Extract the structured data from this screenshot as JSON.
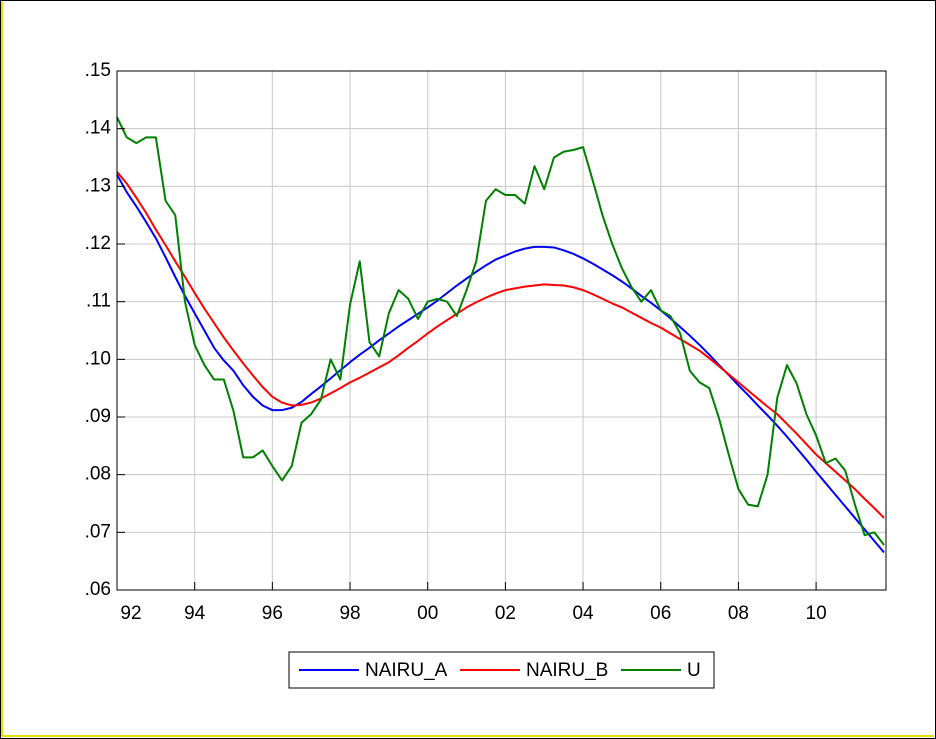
{
  "chart_data": {
    "type": "line",
    "x": [
      1992,
      1992.25,
      1992.5,
      1992.75,
      1993,
      1993.25,
      1993.5,
      1993.75,
      1994,
      1994.25,
      1994.5,
      1994.75,
      1995,
      1995.25,
      1995.5,
      1995.75,
      1996,
      1996.25,
      1996.5,
      1996.75,
      1997,
      1997.25,
      1997.5,
      1997.75,
      1998,
      1998.25,
      1998.5,
      1998.75,
      1999,
      1999.25,
      1999.5,
      1999.75,
      2000,
      2000.25,
      2000.5,
      2000.75,
      2001,
      2001.25,
      2001.5,
      2001.75,
      2002,
      2002.25,
      2002.5,
      2002.75,
      2003,
      2003.25,
      2003.5,
      2003.75,
      2004,
      2004.25,
      2004.5,
      2004.75,
      2005,
      2005.25,
      2005.5,
      2005.75,
      2006,
      2006.25,
      2006.5,
      2006.75,
      2007,
      2007.25,
      2007.5,
      2007.75,
      2008,
      2008.25,
      2008.5,
      2008.75,
      2009,
      2009.25,
      2009.5,
      2009.75,
      2010,
      2010.25,
      2010.5,
      2010.75,
      2011,
      2011.25,
      2011.5,
      2011.75
    ],
    "series": [
      {
        "name": "NAIRU_A",
        "color": "#0000ff",
        "values": [
          0.132,
          0.129,
          0.1265,
          0.1238,
          0.121,
          0.1177,
          0.1143,
          0.111,
          0.108,
          0.105,
          0.102,
          0.0998,
          0.098,
          0.0955,
          0.0935,
          0.092,
          0.0912,
          0.0912,
          0.0916,
          0.0926,
          0.094,
          0.0953,
          0.0967,
          0.0981,
          0.0995,
          0.1008,
          0.102,
          0.1033,
          0.1045,
          0.1057,
          0.1068,
          0.1079,
          0.109,
          0.1102,
          0.1115,
          0.1128,
          0.114,
          0.1152,
          0.1163,
          0.1173,
          0.118,
          0.1187,
          0.1192,
          0.1195,
          0.1195,
          0.1194,
          0.1189,
          0.1183,
          0.1175,
          0.1166,
          0.1156,
          0.1146,
          0.1135,
          0.1123,
          0.111,
          0.1098,
          0.1085,
          0.1071,
          0.1056,
          0.1041,
          0.1025,
          0.1008,
          0.099,
          0.0973,
          0.0955,
          0.0938,
          0.092,
          0.0903,
          0.0885,
          0.0866,
          0.0846,
          0.0826,
          0.0805,
          0.0785,
          0.0765,
          0.0745,
          0.0725,
          0.0705,
          0.0685,
          0.0665
        ]
      },
      {
        "name": "NAIRU_B",
        "color": "#ff0000",
        "values": [
          0.1325,
          0.1305,
          0.128,
          0.1254,
          0.1225,
          0.1198,
          0.117,
          0.1143,
          0.1115,
          0.1088,
          0.1063,
          0.1038,
          0.1015,
          0.0993,
          0.0972,
          0.0952,
          0.0935,
          0.0925,
          0.092,
          0.0921,
          0.0925,
          0.0932,
          0.0941,
          0.095,
          0.096,
          0.0968,
          0.0977,
          0.0986,
          0.0995,
          0.1007,
          0.102,
          0.1032,
          0.1045,
          0.1057,
          0.1068,
          0.1079,
          0.109,
          0.1099,
          0.1107,
          0.1114,
          0.112,
          0.1123,
          0.1126,
          0.1128,
          0.113,
          0.1129,
          0.1128,
          0.1125,
          0.112,
          0.1113,
          0.1105,
          0.1097,
          0.109,
          0.1081,
          0.1072,
          0.1063,
          0.1055,
          0.1045,
          0.1035,
          0.1025,
          0.1015,
          0.1002,
          0.0988,
          0.0974,
          0.096,
          0.0946,
          0.0932,
          0.0918,
          0.0905,
          0.0888,
          0.0871,
          0.0853,
          0.0835,
          0.082,
          0.0805,
          0.079,
          0.0775,
          0.0758,
          0.0742,
          0.0725
        ]
      },
      {
        "name": "U",
        "color": "#008000",
        "values": [
          0.142,
          0.1385,
          0.1375,
          0.1385,
          0.1385,
          0.1275,
          0.125,
          0.11,
          0.1025,
          0.099,
          0.0965,
          0.0965,
          0.091,
          0.083,
          0.083,
          0.0842,
          0.0815,
          0.079,
          0.0815,
          0.089,
          0.0905,
          0.093,
          0.1,
          0.0965,
          0.1095,
          0.117,
          0.103,
          0.1005,
          0.108,
          0.112,
          0.1105,
          0.107,
          0.11,
          0.1105,
          0.11,
          0.1075,
          0.112,
          0.117,
          0.1275,
          0.1295,
          0.1285,
          0.1285,
          0.127,
          0.1335,
          0.1295,
          0.135,
          0.136,
          0.1363,
          0.1368,
          0.131,
          0.125,
          0.12,
          0.1158,
          0.1125,
          0.11,
          0.112,
          0.1085,
          0.1075,
          0.1045,
          0.098,
          0.096,
          0.095,
          0.0898,
          0.0835,
          0.0775,
          0.0748,
          0.0745,
          0.08,
          0.0933,
          0.099,
          0.0958,
          0.0905,
          0.0868,
          0.082,
          0.0828,
          0.0807,
          0.0748,
          0.0695,
          0.07,
          0.0678
        ]
      }
    ],
    "xlim": [
      1992,
      2011.8
    ],
    "xticks": [
      {
        "value": 1992,
        "label": "92"
      },
      {
        "value": 1994,
        "label": "94"
      },
      {
        "value": 1996,
        "label": "96"
      },
      {
        "value": 1998,
        "label": "98"
      },
      {
        "value": 2000,
        "label": "00"
      },
      {
        "value": 2002,
        "label": "02"
      },
      {
        "value": 2004,
        "label": "04"
      },
      {
        "value": 2006,
        "label": "06"
      },
      {
        "value": 2008,
        "label": "08"
      },
      {
        "value": 2010,
        "label": "10"
      }
    ],
    "ylim": [
      0.06,
      0.15
    ],
    "yticks": [
      {
        "value": 0.06,
        "label": ".06"
      },
      {
        "value": 0.07,
        "label": ".07"
      },
      {
        "value": 0.08,
        "label": ".08"
      },
      {
        "value": 0.09,
        "label": ".09"
      },
      {
        "value": 0.1,
        "label": ".10"
      },
      {
        "value": 0.11,
        "label": ".11"
      },
      {
        "value": 0.12,
        "label": ".12"
      },
      {
        "value": 0.13,
        "label": ".13"
      },
      {
        "value": 0.14,
        "label": ".14"
      },
      {
        "value": 0.15,
        "label": ".15"
      }
    ],
    "grid": true,
    "legend": "bottom"
  }
}
